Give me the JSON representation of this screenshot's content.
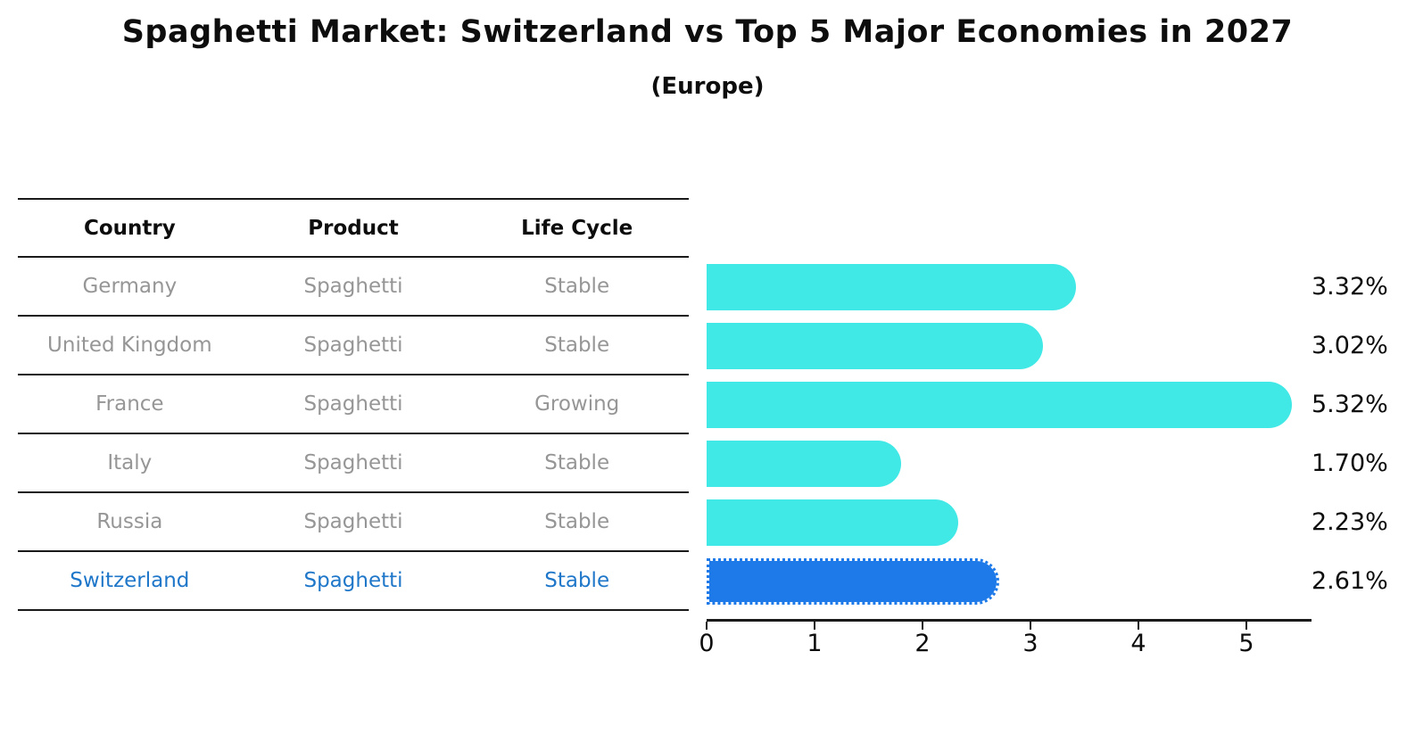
{
  "title": "Spaghetti Market: Switzerland vs Top 5 Major Economies in 2027",
  "subtitle": "(Europe)",
  "table": {
    "headers": [
      "Country",
      "Product",
      "Life Cycle"
    ]
  },
  "rows": [
    {
      "country": "Germany",
      "product": "Spaghetti",
      "life_cycle": "Stable",
      "highlight": false
    },
    {
      "country": "United Kingdom",
      "product": "Spaghetti",
      "life_cycle": "Stable",
      "highlight": false
    },
    {
      "country": "France",
      "product": "Spaghetti",
      "life_cycle": "Growing",
      "highlight": false
    },
    {
      "country": "Italy",
      "product": "Spaghetti",
      "life_cycle": "Stable",
      "highlight": false
    },
    {
      "country": "Russia",
      "product": "Spaghetti",
      "life_cycle": "Stable",
      "highlight": true
    },
    {
      "country": "Switzerland",
      "product": "Spaghetti",
      "life_cycle": "Stable",
      "highlight": true
    }
  ],
  "chart_data": {
    "type": "bar",
    "orientation": "horizontal",
    "title": "Spaghetti Market: Switzerland vs Top 5 Major Economies in 2027",
    "subtitle": "(Europe)",
    "categories": [
      "Germany",
      "United Kingdom",
      "France",
      "Italy",
      "Russia",
      "Switzerland"
    ],
    "values": [
      3.32,
      3.02,
      5.32,
      1.7,
      2.23,
      2.61
    ],
    "value_labels": [
      "3.32%",
      "3.02%",
      "5.32%",
      "1.70%",
      "2.23%",
      "2.61%"
    ],
    "x_ticks": [
      0,
      1,
      2,
      3,
      4,
      5
    ],
    "xlim": [
      0,
      5.6
    ],
    "grid": false,
    "legend": "none",
    "highlight_category": "Switzerland",
    "bar_color": "#40E8E6",
    "highlight_bar_color": "#1E7AE8",
    "highlight_border_style": "dotted",
    "highlight_text_color": "#1F77C9",
    "axis_color": "#1a1a1a",
    "label_color": "#0d0d0d",
    "muted_text_color": "#969696"
  }
}
